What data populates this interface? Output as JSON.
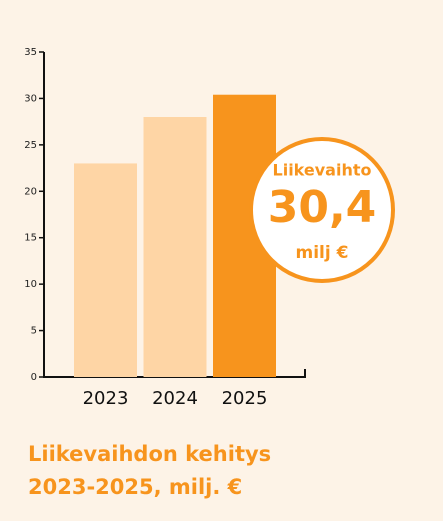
{
  "chart_data": {
    "type": "bar",
    "title": [
      "Liikevaihdon kehitys",
      "2023-2025, milj. €"
    ],
    "categories": [
      "2023",
      "2024",
      "2025"
    ],
    "values": [
      23,
      28,
      30.4
    ],
    "colors": [
      "#fed5a5",
      "#fed5a5",
      "#f7941d"
    ],
    "ylim": [
      0,
      35
    ],
    "yticks": [
      0,
      5,
      10,
      15,
      20,
      25,
      30,
      35
    ],
    "annotation": {
      "label": "Liikevaihto",
      "value_label": "30,4",
      "unit": "milj €"
    }
  }
}
